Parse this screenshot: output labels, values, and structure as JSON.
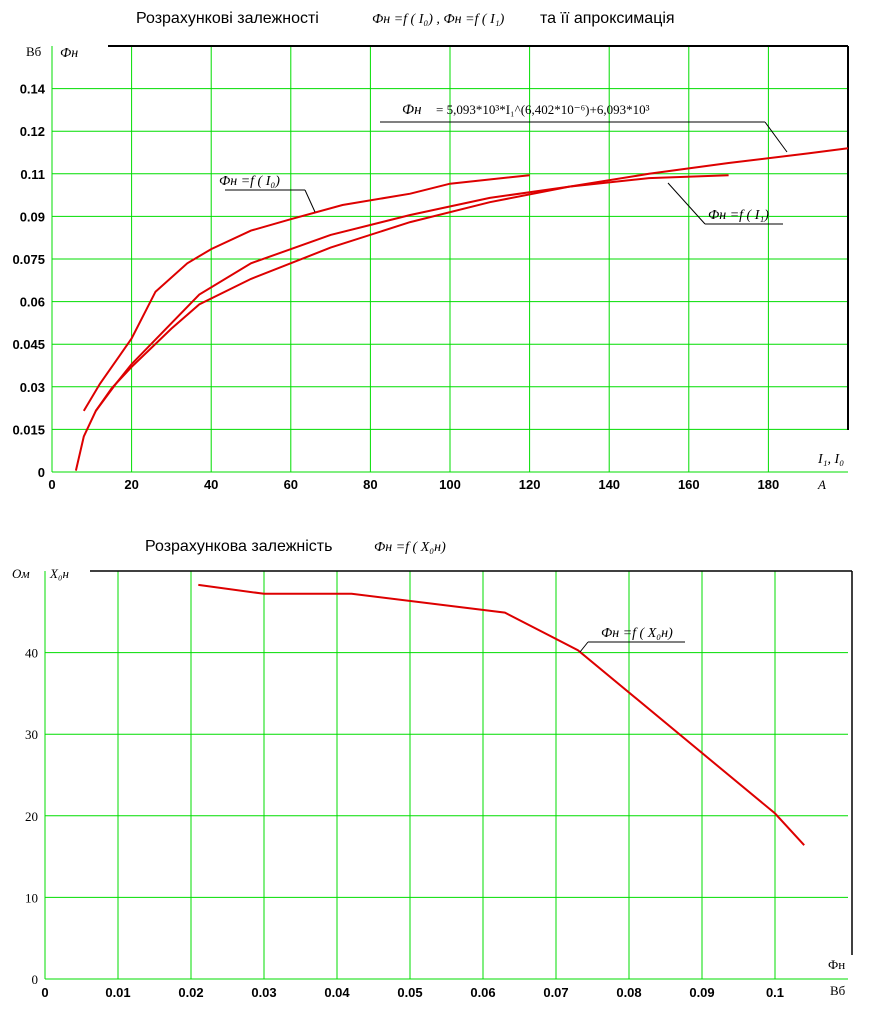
{
  "chart_data": [
    {
      "type": "line",
      "title_prefix": "Розрахункові залежності",
      "title_formula": "Фн =f ( I₀) , Фн =f ( I₁)",
      "title_suffix": "та її апроксимація",
      "y_unit": "Вб",
      "y_symbol": "Фн",
      "x_symbol": "I₁, I₀",
      "x_unit": "A",
      "xlim": [
        0,
        200
      ],
      "ylim": [
        0,
        0.15
      ],
      "x_ticks": [
        0,
        20,
        40,
        60,
        80,
        100,
        120,
        140,
        160,
        180
      ],
      "y_ticks": [
        {
          "v": 0,
          "label": "0"
        },
        {
          "v": 0.015,
          "label": "0.015"
        },
        {
          "v": 0.03,
          "label": "0.03"
        },
        {
          "v": 0.045,
          "label": "0.045"
        },
        {
          "v": 0.06,
          "label": "0.06"
        },
        {
          "v": 0.075,
          "label": "0.075"
        },
        {
          "v": 0.09,
          "label": "0.09"
        },
        {
          "v": 0.105,
          "label": "0.11"
        },
        {
          "v": 0.12,
          "label": "0.12"
        },
        {
          "v": 0.135,
          "label": "0.14"
        }
      ],
      "grid": true,
      "series": [
        {
          "key": "I0",
          "color": "#dd0000",
          "x": [
            8,
            12,
            17,
            20,
            26,
            34,
            40,
            50,
            60,
            73,
            90,
            100,
            120
          ],
          "y": [
            0.0215,
            0.031,
            0.041,
            0.047,
            0.0635,
            0.0735,
            0.0785,
            0.085,
            0.089,
            0.094,
            0.098,
            0.1015,
            0.1045
          ]
        },
        {
          "key": "I1",
          "color": "#dd0000",
          "x": [
            11,
            16,
            20,
            28,
            37,
            50,
            70,
            90,
            110,
            130,
            150,
            170
          ],
          "y": [
            0.0215,
            0.031,
            0.038,
            0.0495,
            0.0625,
            0.0735,
            0.0835,
            0.0905,
            0.0965,
            0.1005,
            0.1035,
            0.1045
          ]
        },
        {
          "key": "approx",
          "color": "#dd0000",
          "x": [
            6,
            8,
            11,
            15,
            20,
            30,
            37,
            50,
            70,
            90,
            110,
            130,
            150,
            170,
            190,
            200
          ],
          "y": [
            0.0005,
            0.0125,
            0.0215,
            0.0295,
            0.037,
            0.0505,
            0.059,
            0.068,
            0.079,
            0.088,
            0.095,
            0.1005,
            0.105,
            0.1088,
            0.1122,
            0.114
          ]
        }
      ],
      "annotations": {
        "i0_label": "Фн =f ( I₀)",
        "i1_label": "Фн =f ( I₁)",
        "approx_lhs": "Фн",
        "approx_rhs": "= 5,093*10³*I₁^(6,402*10⁻⁶)+6,093*10³"
      }
    },
    {
      "type": "line",
      "title_prefix": "Розрахункова залежність",
      "title_formula": "Фн =f ( X₀н)",
      "y_unit": "Ом",
      "y_symbol": "X₀н",
      "x_symbol": "Фн",
      "x_unit": "Вб",
      "xlim": [
        0,
        0.11
      ],
      "ylim": [
        0,
        50
      ],
      "x_ticks": [
        {
          "v": 0,
          "label": "0"
        },
        {
          "v": 0.01,
          "label": "0.01"
        },
        {
          "v": 0.02,
          "label": "0.02"
        },
        {
          "v": 0.03,
          "label": "0.03"
        },
        {
          "v": 0.04,
          "label": "0.04"
        },
        {
          "v": 0.05,
          "label": "0.05"
        },
        {
          "v": 0.06,
          "label": "0.06"
        },
        {
          "v": 0.07,
          "label": "0.07"
        },
        {
          "v": 0.08,
          "label": "0.08"
        },
        {
          "v": 0.09,
          "label": "0.09"
        },
        {
          "v": 0.1,
          "label": "0.1"
        }
      ],
      "y_ticks": [
        0,
        10,
        20,
        30,
        40
      ],
      "grid": true,
      "series": [
        {
          "key": "x0n",
          "color": "#dd0000",
          "x": [
            0.021,
            0.03,
            0.042,
            0.063,
            0.073,
            0.1,
            0.104
          ],
          "y": [
            48.3,
            47.2,
            47.2,
            44.9,
            40.3,
            20.3,
            16.4
          ]
        }
      ],
      "annotations": {
        "curve_label": "Фн =f ( X₀н)"
      }
    }
  ]
}
